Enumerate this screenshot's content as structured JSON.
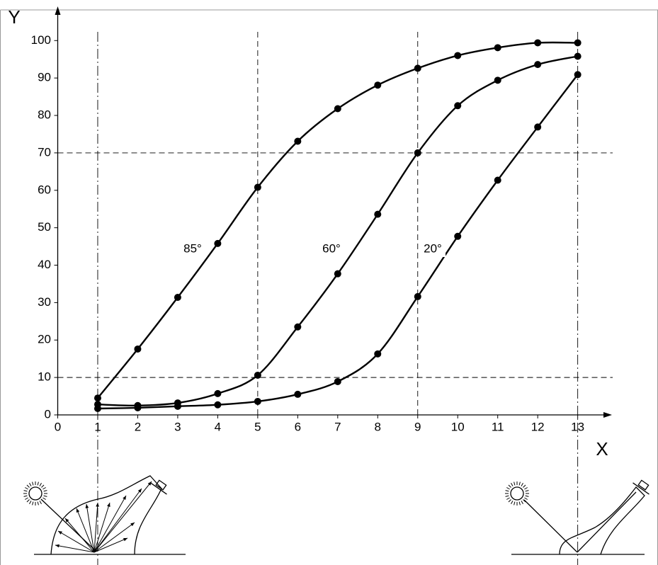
{
  "chart_data": {
    "type": "line",
    "y_label": "Y",
    "x_label": "X",
    "x": [
      1,
      2,
      3,
      4,
      5,
      6,
      7,
      8,
      9,
      10,
      11,
      12,
      13
    ],
    "series": [
      {
        "name": "85°",
        "color": "#000000",
        "values": [
          4.5,
          17.6,
          31.4,
          45.8,
          60.8,
          73.1,
          81.8,
          88.1,
          92.6,
          96,
          98.1,
          99.4,
          99.4
        ]
      },
      {
        "name": "60°",
        "color": "#000000",
        "values": [
          2.8,
          2.5,
          3.2,
          5.7,
          10.6,
          23.5,
          37.7,
          53.6,
          70,
          82.6,
          89.4,
          93.6,
          95.8
        ]
      },
      {
        "name": "20°",
        "color": "#000000",
        "values": [
          1.7,
          1.9,
          2.3,
          2.7,
          3.6,
          5.5,
          8.9,
          16.3,
          31.6,
          47.7,
          62.7,
          76.9,
          90.9
        ]
      }
    ],
    "xlim": [
      0,
      13.75
    ],
    "ylim": [
      0,
      108
    ],
    "xticks": [
      0,
      1,
      2,
      3,
      4,
      5,
      6,
      7,
      8,
      9,
      10,
      11,
      12,
      13
    ],
    "yticks": [
      0,
      10,
      20,
      30,
      40,
      50,
      60,
      70,
      80,
      90,
      100
    ],
    "vlines": [
      1,
      5,
      9,
      13
    ],
    "hlines": [
      10,
      70
    ]
  }
}
